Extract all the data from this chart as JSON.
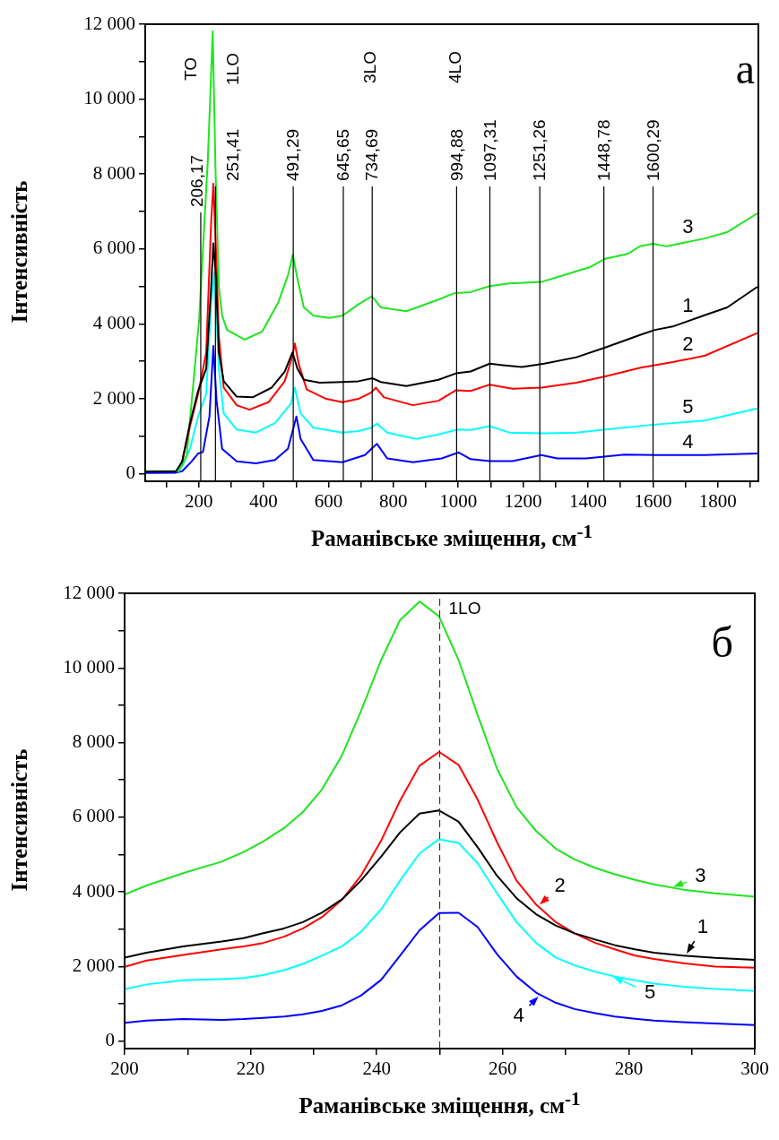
{
  "chart_data": [
    {
      "type": "line",
      "xlabel": "Раманівське зміщення, см$^{-1}$",
      "ylabel": "Інтенсивність",
      "xlim": [
        35,
        1925
      ],
      "ylim": [
        -200,
        12000
      ],
      "xticks": [
        {
          "value": 100,
          "label": null
        },
        200,
        {
          "value": 300,
          "label": null
        },
        400,
        {
          "value": 500,
          "label": null
        },
        600,
        {
          "value": 700,
          "label": null
        },
        800,
        {
          "value": 900,
          "label": null
        },
        1000,
        {
          "value": 1100,
          "label": null
        },
        1200,
        {
          "value": 1300,
          "label": null
        },
        1400,
        {
          "value": 1500,
          "label": null
        },
        1600,
        {
          "value": 1700,
          "label": null
        },
        1800,
        {
          "value": 1900,
          "label": null
        }
      ],
      "yticks": [
        0,
        {
          "value": 1000,
          "label": null
        },
        {
          "value": 2000,
          "label": "2 000"
        },
        {
          "value": 3000,
          "label": null
        },
        {
          "value": 4000,
          "label": "4 000"
        },
        {
          "value": 5000,
          "label": null
        },
        {
          "value": 6000,
          "label": "6 000"
        },
        {
          "value": 7000,
          "label": null
        },
        {
          "value": 8000,
          "label": "8 000"
        },
        {
          "value": 9000,
          "label": null
        },
        {
          "value": 10000,
          "label": "10 000"
        },
        {
          "value": 11000,
          "label": null
        },
        {
          "value": 12000,
          "label": "12 000"
        }
      ],
      "series": [
        {
          "name": "1",
          "color": "#000000",
          "x": [
            40,
            130,
            149,
            173,
            198,
            223,
            238,
            245,
            252,
            262,
            277,
            317,
            366,
            425,
            465,
            489,
            504,
            524,
            573,
            643,
            692,
            736,
            761,
            840,
            939,
            993,
            1038,
            1097,
            1137,
            1196,
            1265,
            1364,
            1453,
            1562,
            1606,
            1661,
            1759,
            1829,
            1920
          ],
          "values": [
            60,
            70,
            330,
            1350,
            2210,
            2810,
            4950,
            6150,
            5380,
            3240,
            2470,
            2060,
            2040,
            2300,
            2730,
            3240,
            2810,
            2510,
            2430,
            2450,
            2470,
            2550,
            2450,
            2340,
            2510,
            2680,
            2730,
            2940,
            2900,
            2850,
            2940,
            3110,
            3370,
            3710,
            3840,
            3930,
            4230,
            4440,
            4980
          ]
        },
        {
          "name": "2",
          "color": "#ff0000",
          "x": [
            149,
            173,
            198,
            223,
            238,
            245,
            252,
            262,
            277,
            317,
            356,
            415,
            465,
            489,
            496,
            509,
            533,
            593,
            643,
            692,
            732,
            746,
            771,
            860,
            939,
            993,
            1038,
            1097,
            1167,
            1256,
            1364,
            1453,
            1562,
            1661,
            1759,
            1920
          ],
          "values": [
            330,
            1270,
            2130,
            3240,
            6670,
            7740,
            6240,
            3670,
            2300,
            1830,
            1710,
            1910,
            2470,
            3150,
            3480,
            2900,
            2250,
            2000,
            1910,
            2000,
            2170,
            2300,
            2040,
            1830,
            1950,
            2230,
            2210,
            2380,
            2270,
            2300,
            2430,
            2600,
            2830,
            2980,
            3150,
            3750
          ]
        },
        {
          "name": "3",
          "color": "#1ee61e",
          "x": [
            40,
            139,
            163,
            183,
            201,
            228,
            243,
            252,
            262,
            272,
            287,
            341,
            396,
            445,
            475,
            490,
            504,
            524,
            554,
            603,
            643,
            692,
            734,
            761,
            840,
            939,
            988,
            1038,
            1097,
            1157,
            1256,
            1305,
            1404,
            1453,
            1522,
            1562,
            1601,
            1641,
            1759,
            1829,
            1920
          ],
          "values": [
            70,
            70,
            500,
            2380,
            4100,
            8380,
            11810,
            8000,
            5000,
            4230,
            3840,
            3580,
            3800,
            4570,
            5300,
            5850,
            5210,
            4440,
            4220,
            4160,
            4220,
            4520,
            4740,
            4440,
            4340,
            4650,
            4820,
            4850,
            5010,
            5080,
            5120,
            5250,
            5510,
            5740,
            5870,
            6080,
            6140,
            6070,
            6280,
            6450,
            6940
          ]
        },
        {
          "name": "4",
          "color": "#0000ff",
          "x": [
            40,
            130,
            149,
            178,
            198,
            213,
            233,
            245,
            255,
            272,
            317,
            376,
            435,
            475,
            501,
            514,
            553,
            643,
            712,
            749,
            781,
            860,
            949,
            1001,
            1038,
            1097,
            1167,
            1256,
            1305,
            1394,
            1512,
            1611,
            1759,
            1920
          ],
          "values": [
            20,
            30,
            70,
            330,
            540,
            580,
            1530,
            3410,
            1950,
            670,
            330,
            280,
            370,
            670,
            1530,
            930,
            370,
            310,
            500,
            800,
            410,
            310,
            410,
            570,
            390,
            340,
            340,
            500,
            410,
            410,
            510,
            500,
            500,
            540
          ]
        },
        {
          "name": "5",
          "color": "#00ffff",
          "x": [
            130,
            149,
            173,
            198,
            223,
            238,
            248,
            262,
            277,
            317,
            376,
            435,
            484,
            496,
            514,
            553,
            643,
            692,
            732,
            749,
            781,
            870,
            939,
            998,
            1038,
            1097,
            1157,
            1265,
            1364,
            1453,
            1601,
            1759,
            1920
          ],
          "values": [
            60,
            200,
            670,
            1530,
            2130,
            4530,
            5380,
            2810,
            1610,
            1180,
            1100,
            1350,
            1870,
            2300,
            1610,
            1230,
            1100,
            1140,
            1230,
            1340,
            1100,
            930,
            1050,
            1180,
            1170,
            1270,
            1100,
            1080,
            1100,
            1180,
            1310,
            1420,
            1740
          ]
        }
      ],
      "ref_lines": [
        {
          "axis": "x",
          "value": 206.17,
          "label": "206,17"
        },
        {
          "axis": "x",
          "value": 251.41,
          "label": "251,41"
        },
        {
          "axis": "x",
          "value": 491.29,
          "label": "491,29"
        },
        {
          "axis": "x",
          "value": 645.65,
          "label": "645,65"
        },
        {
          "axis": "x",
          "value": 734.69,
          "label": "734,69"
        },
        {
          "axis": "x",
          "value": 994.88,
          "label": "994,88"
        },
        {
          "axis": "x",
          "value": 1097.31,
          "label": "1097,31"
        },
        {
          "axis": "x",
          "value": 1251.26,
          "label": "1251,26"
        },
        {
          "axis": "x",
          "value": 1448.78,
          "label": "1448,78"
        },
        {
          "axis": "x",
          "value": 1600.29,
          "label": "1600,29"
        }
      ],
      "annotations": [
        "TO",
        "1LO",
        "3LO",
        "4LO",
        "а"
      ]
    },
    {
      "type": "line",
      "xlabel": "Раманівське зміщення, см$^{-1}$",
      "ylabel": "Інтенсивність",
      "xlim": [
        200,
        300
      ],
      "ylim": [
        -200,
        12000
      ],
      "xticks": [
        200,
        {
          "value": 210,
          "label": null
        },
        220,
        {
          "value": 230,
          "label": null
        },
        240,
        {
          "value": 250,
          "label": null
        },
        260,
        {
          "value": 270,
          "label": null
        },
        280,
        {
          "value": 290,
          "label": null
        },
        300
      ],
      "yticks": [
        0,
        {
          "value": 1000,
          "label": null
        },
        {
          "value": 2000,
          "label": "2 000"
        },
        {
          "value": 3000,
          "label": null
        },
        {
          "value": 4000,
          "label": "4 000"
        },
        {
          "value": 5000,
          "label": null
        },
        {
          "value": 6000,
          "label": "6 000"
        },
        {
          "value": 7000,
          "label": null
        },
        {
          "value": 8000,
          "label": "8 000"
        },
        {
          "value": 9000,
          "label": null
        },
        {
          "value": 10000,
          "label": "10 000"
        },
        {
          "value": 11000,
          "label": null
        },
        {
          "value": 12000,
          "label": "12 000"
        }
      ],
      "x": [
        200,
        203.5,
        209.3,
        215.4,
        218.9,
        222,
        225.3,
        228.3,
        231.3,
        234.5,
        237.5,
        240.7,
        243.7,
        246.8,
        249.9,
        253,
        256,
        259.1,
        262.2,
        265.3,
        268.4,
        271.4,
        274.7,
        277.8,
        281,
        284,
        288.6,
        293.7,
        300
      ],
      "series": [
        {
          "name": "1",
          "color": "#000000",
          "values": [
            2240,
            2370,
            2540,
            2670,
            2760,
            2890,
            3020,
            3190,
            3440,
            3800,
            4300,
            4940,
            5590,
            6100,
            6180,
            5880,
            5200,
            4430,
            3830,
            3400,
            3100,
            2890,
            2720,
            2570,
            2460,
            2370,
            2290,
            2230,
            2180
          ]
        },
        {
          "name": "2",
          "color": "#ff0000",
          "values": [
            1990,
            2160,
            2310,
            2460,
            2540,
            2630,
            2800,
            3020,
            3320,
            3790,
            4430,
            5370,
            6440,
            7380,
            7750,
            7400,
            6480,
            5330,
            4300,
            3660,
            3190,
            2890,
            2630,
            2460,
            2290,
            2200,
            2090,
            2000,
            1970
          ]
        },
        {
          "name": "3",
          "color": "#1ee61e",
          "values": [
            3930,
            4170,
            4500,
            4810,
            5070,
            5350,
            5710,
            6140,
            6740,
            7660,
            8840,
            10210,
            11280,
            11780,
            11380,
            10210,
            8750,
            7300,
            6270,
            5630,
            5160,
            4870,
            4640,
            4470,
            4320,
            4200,
            4060,
            3960,
            3870
          ]
        },
        {
          "name": "4",
          "color": "#0000ff",
          "values": [
            490,
            550,
            590,
            570,
            590,
            620,
            660,
            720,
            810,
            960,
            1220,
            1640,
            2290,
            2970,
            3430,
            3440,
            3060,
            2330,
            1730,
            1300,
            1030,
            860,
            750,
            660,
            600,
            550,
            510,
            470,
            430
          ]
        },
        {
          "name": "5",
          "color": "#00ffff",
          "values": [
            1390,
            1520,
            1630,
            1660,
            1690,
            1770,
            1900,
            2070,
            2290,
            2540,
            2930,
            3530,
            4300,
            5030,
            5410,
            5310,
            4770,
            3960,
            3190,
            2630,
            2240,
            2030,
            1860,
            1730,
            1630,
            1540,
            1460,
            1400,
            1340
          ]
        }
      ],
      "ref_lines": [
        {
          "axis": "x",
          "value": 250,
          "label": "1LO",
          "line_style": "dashed"
        }
      ],
      "legend": "right",
      "annotations": [
        "б"
      ]
    }
  ]
}
